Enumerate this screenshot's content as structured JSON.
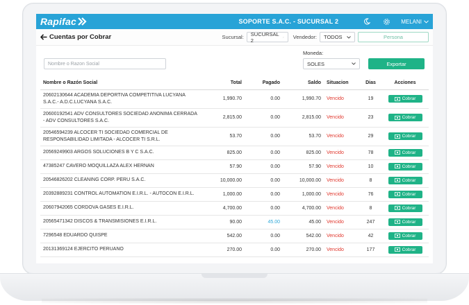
{
  "app": {
    "logo_text": "Rapifac",
    "company": "SOPORTE S.A.C. - SUCURSAL 2",
    "user": "MELANI",
    "brand_color": "#28a3d7",
    "accent_color": "#1fb387"
  },
  "icons": {
    "logo": "double-chevron-right-icon",
    "theme": "moon-icon",
    "settings": "gear-icon",
    "user_menu": "chevron-down-icon",
    "back": "arrow-left-icon",
    "cash": "cash-icon"
  },
  "header": {
    "title": "Cuentas por Cobrar",
    "sucursal_label": "Sucursal:",
    "sucursal_value": "SUCURSAL 2",
    "vendedor_label": "Vendedor:",
    "vendedor_value": "TODOS",
    "persona_placeholder": "Persona"
  },
  "toolbar": {
    "search_placeholder": "Nombre o Razon Social",
    "moneda_label": "Moneda:",
    "moneda_value": "SOLES",
    "export_label": "Exportar"
  },
  "table": {
    "columns": [
      "Nombre o Razón Social",
      "Total",
      "Pagado",
      "Saldo",
      "Situacion",
      "Dias",
      "Acciones"
    ],
    "action_label": "Cobrar",
    "rows": [
      {
        "name": "20602130644 ACADEMIA DEPORTIVA COMPETITIVA LUCYANA S.A.C.- A.D.C.LUCYANA S.A.C.",
        "total": "1,990.70",
        "pagado": "0.00",
        "saldo": "1,990.70",
        "situacion": "Vencido",
        "dias": "19"
      },
      {
        "name": "20600192541 ADV CONSULTORES SOCIEDAD ANONIMA CERRADA - ADV CONSULTORES S.A.C.",
        "total": "2,815.00",
        "pagado": "0.00",
        "saldo": "2,815.00",
        "situacion": "Vencido",
        "dias": "23"
      },
      {
        "name": "20546594239 ALCOCER TI SOCIEDAD COMERCIAL DE RESPONSABILIDAD LIMITADA - ALCOCER TI S.R.L.",
        "total": "53.70",
        "pagado": "0.00",
        "saldo": "53.70",
        "situacion": "Vencido",
        "dias": "29"
      },
      {
        "name": "20569249903 ARGOS SOLUCIONES B Y C S.A.C.",
        "total": "825.00",
        "pagado": "0.00",
        "saldo": "825.00",
        "situacion": "Vencido",
        "dias": "78"
      },
      {
        "name": "47385247 CAVERO MOQUILLAZA ALEX HERNAN",
        "total": "57.90",
        "pagado": "0.00",
        "saldo": "57.90",
        "situacion": "Vencido",
        "dias": "10"
      },
      {
        "name": "20546826202 CLEANING CORP. PERU S.A.C.",
        "total": "10,000.00",
        "pagado": "0.00",
        "saldo": "10,000.00",
        "situacion": "Vencido",
        "dias": "8"
      },
      {
        "name": "20392889231 CONTROL AUTOMATION E.I.R.L. - AUTOCON E.I.R.L.",
        "total": "1,000.00",
        "pagado": "0.00",
        "saldo": "1,000.00",
        "situacion": "Vencido",
        "dias": "76"
      },
      {
        "name": "20607942065 CORDOVA GASES E.I.R.L.",
        "total": "4,700.00",
        "pagado": "0.00",
        "saldo": "4,700.00",
        "situacion": "Vencido",
        "dias": "8"
      },
      {
        "name": "20565471342 DISCOS & TRANSMISIONES E.I.R.L.",
        "total": "90.00",
        "pagado": "45.00",
        "saldo": "45.00",
        "situacion": "Vencido",
        "dias": "247"
      },
      {
        "name": "7296548 EDUARDO QUISPE",
        "total": "542.00",
        "pagado": "0.00",
        "saldo": "542.00",
        "situacion": "Vencido",
        "dias": "42"
      },
      {
        "name": "20131369124 EJERCITO PERUANO",
        "total": "270.00",
        "pagado": "0.00",
        "saldo": "270.00",
        "situacion": "Vencido",
        "dias": "177"
      }
    ]
  }
}
